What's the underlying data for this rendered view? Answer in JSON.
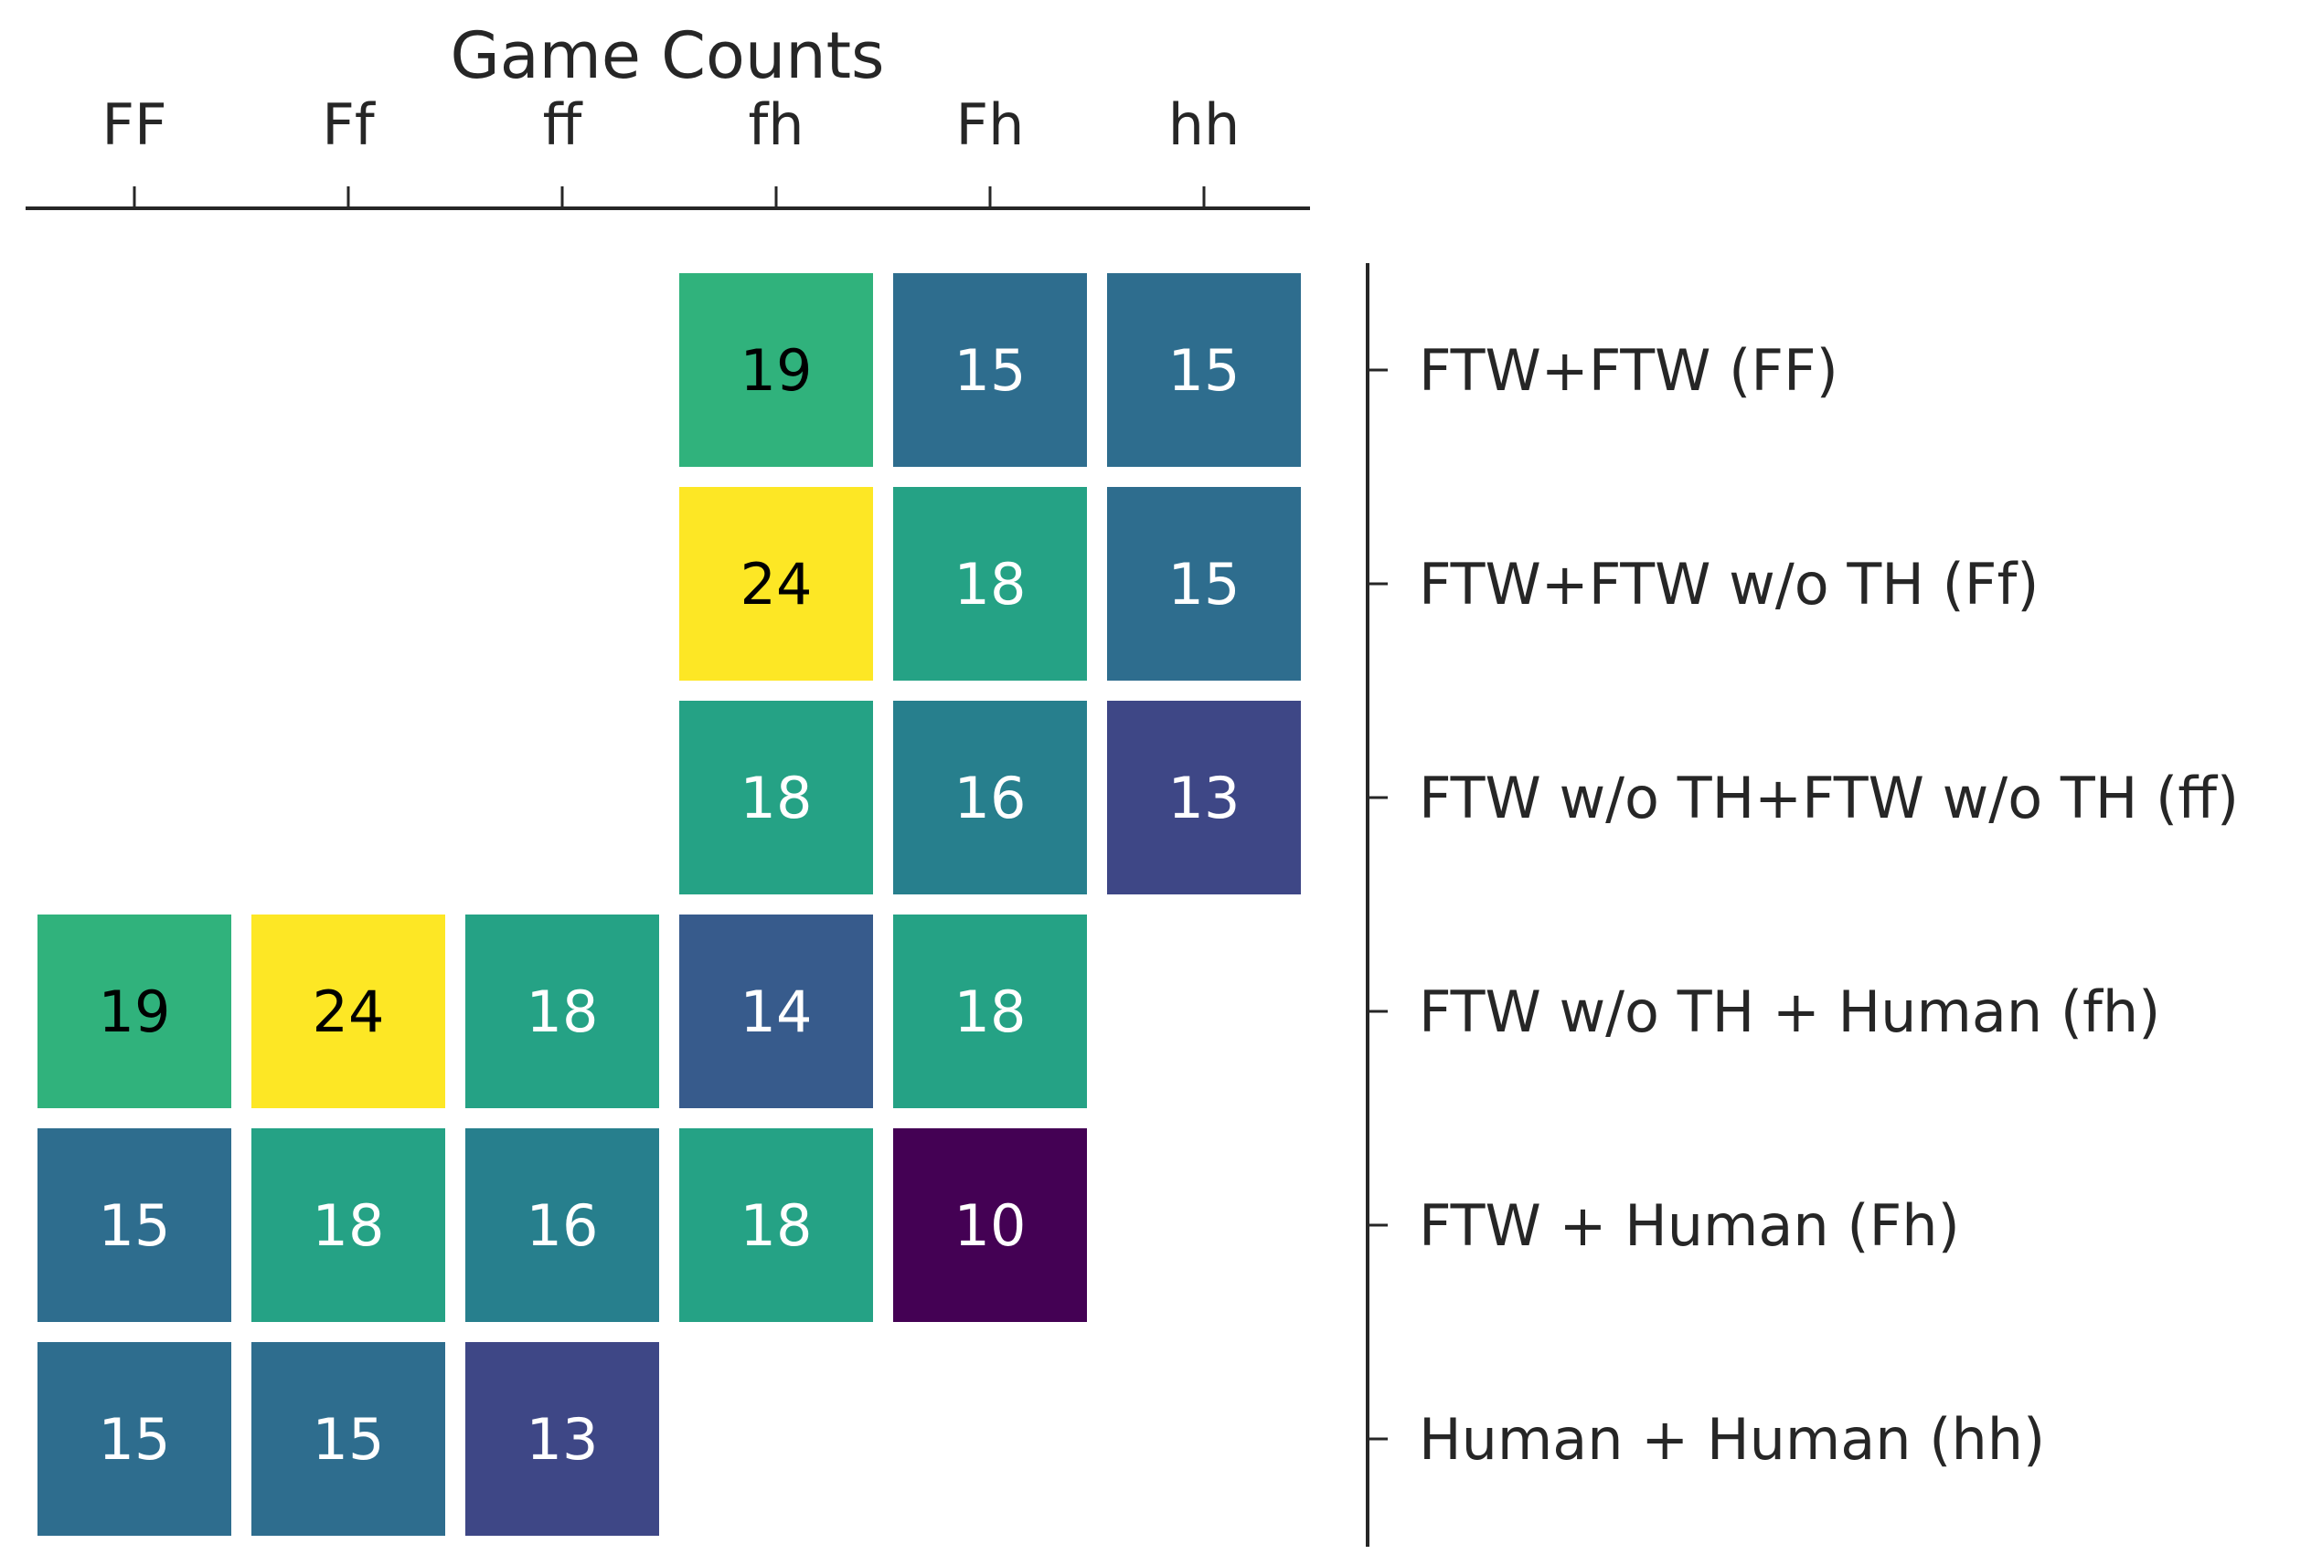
{
  "chart_data": {
    "type": "heatmap",
    "title": "Game Counts",
    "x_categories": [
      "FF",
      "Ff",
      "ff",
      "fh",
      "Fh",
      "hh"
    ],
    "y_categories": [
      "FTW+FTW (FF)",
      "FTW+FTW w/o TH (Ff)",
      "FTW w/o TH+FTW w/o TH (ff)",
      "FTW w/o TH + Human (fh)",
      "FTW + Human (Fh)",
      "Human + Human (hh)"
    ],
    "values": [
      [
        null,
        null,
        null,
        19,
        15,
        15
      ],
      [
        null,
        null,
        null,
        24,
        18,
        15
      ],
      [
        null,
        null,
        null,
        18,
        16,
        13
      ],
      [
        19,
        24,
        18,
        14,
        18,
        null
      ],
      [
        15,
        18,
        16,
        18,
        10,
        null
      ],
      [
        15,
        15,
        13,
        null,
        null,
        null
      ]
    ],
    "value_range": [
      10,
      24
    ],
    "colormap": "viridis",
    "x_axis_position": "top",
    "y_axis_position": "right",
    "grid": false,
    "legend": "none"
  }
}
